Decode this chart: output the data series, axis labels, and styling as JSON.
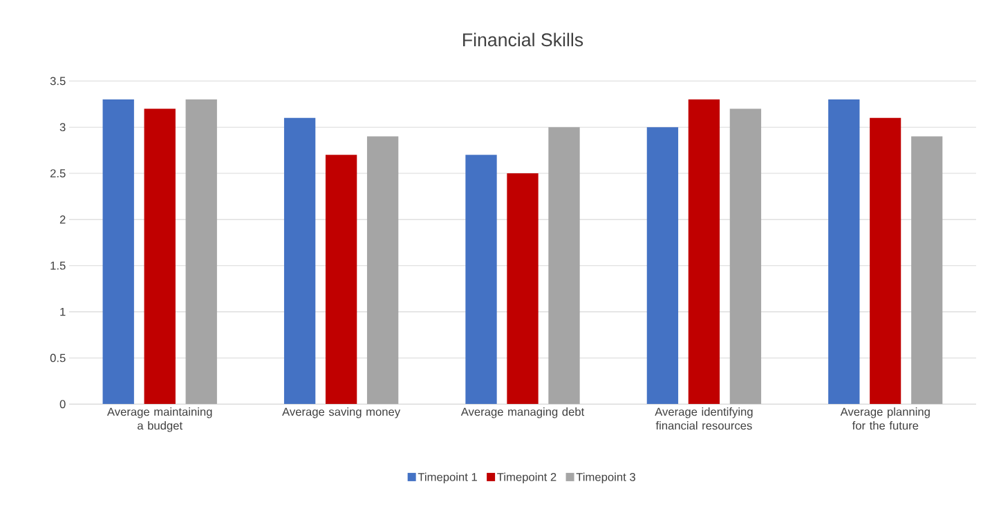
{
  "chart_data": {
    "type": "bar",
    "title": "Financial Skills",
    "categories": [
      "Average maintaining a budget",
      "Average saving money",
      "Average managing debt",
      "Average identifying financial resources",
      "Average planning for the future"
    ],
    "series": [
      {
        "name": "Timepoint 1",
        "color": "#4472c4",
        "values": [
          3.3,
          3.1,
          2.7,
          3.0,
          3.3
        ]
      },
      {
        "name": "Timepoint 2",
        "color": "#c00000",
        "values": [
          3.2,
          2.7,
          2.5,
          3.3,
          3.1
        ]
      },
      {
        "name": "Timepoint 3",
        "color": "#a5a5a5",
        "values": [
          3.3,
          2.9,
          3.0,
          3.2,
          2.9
        ]
      }
    ],
    "ylim": [
      0,
      3.5
    ],
    "yticks": [
      0,
      0.5,
      1,
      1.5,
      2,
      2.5,
      3,
      3.5
    ],
    "grid": "y",
    "legend": "bottom"
  }
}
